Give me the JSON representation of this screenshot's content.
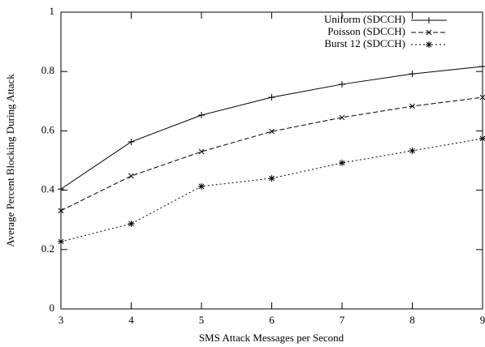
{
  "chart_data": {
    "type": "line",
    "x_label": "SMS Attack Messages per Second",
    "y_label": "Average Percent Blocking During Attack",
    "x": [
      3,
      4,
      5,
      6,
      7,
      8,
      9
    ],
    "xlim": [
      3,
      9
    ],
    "xticks": [
      3,
      4,
      5,
      6,
      7,
      8,
      9
    ],
    "ylim": [
      0,
      1
    ],
    "yticks": [
      0,
      0.2,
      0.4,
      0.6,
      0.8,
      1
    ],
    "legend": "top-right",
    "series": [
      {
        "name": "Uniform (SDCCH)",
        "color": "#000000",
        "line_style": "solid",
        "marker": "plus",
        "values": [
          0.404,
          0.563,
          0.653,
          0.713,
          0.757,
          0.792,
          0.817
        ]
      },
      {
        "name": "Poisson (SDCCH)",
        "color": "#000000",
        "line_style": "dashed",
        "marker": "cross",
        "values": [
          0.331,
          0.448,
          0.53,
          0.598,
          0.645,
          0.683,
          0.713
        ]
      },
      {
        "name": "Burst 12 (SDCCH)",
        "color": "#000000",
        "line_style": "dotted",
        "marker": "star",
        "values": [
          0.227,
          0.287,
          0.413,
          0.44,
          0.492,
          0.533,
          0.574
        ]
      }
    ]
  }
}
